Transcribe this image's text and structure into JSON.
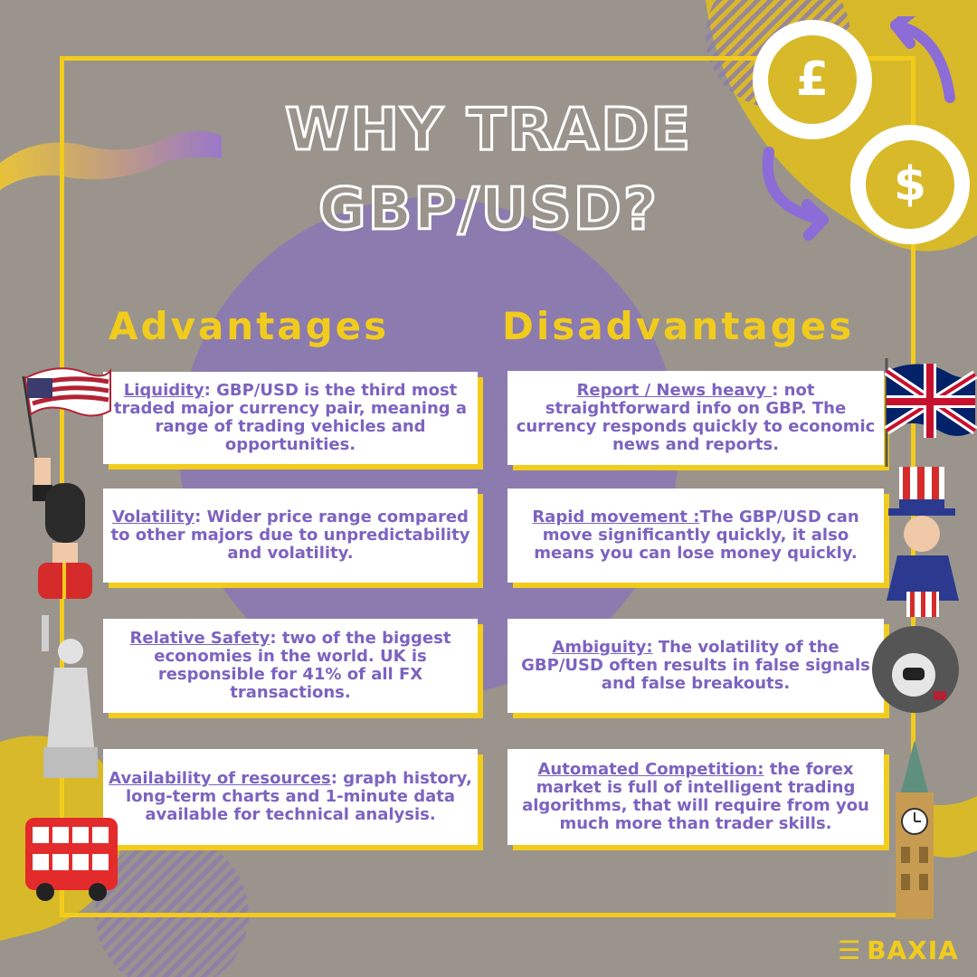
{
  "title": {
    "line1": "WHY TRADE",
    "line2": "GBP/USD?"
  },
  "advantages": {
    "heading": "Advantages",
    "items": [
      {
        "term": "Liquidity",
        "text": ": GBP/USD is the third most traded major currency pair, meaning a range of trading vehicles and opportunities."
      },
      {
        "term": "Volatility",
        "text": ": Wider price range compared to other majors due to unpredictability and volatility."
      },
      {
        "term": "Relative Safety",
        "text": ": two of the biggest economies in the world. UK is responsible for 41% of all FX transactions."
      },
      {
        "term": "Availability of resources",
        "text": ":  graph history, long-term charts and 1-minute data available for technical analysis."
      }
    ]
  },
  "disadvantages": {
    "heading": "Disadvantages",
    "items": [
      {
        "term": "Report / News heavy ",
        "text": ": not straightforward info on GBP. The currency responds quickly to economic news and reports."
      },
      {
        "term": "Rapid movement :",
        "text": "The GBP/USD can move significantly quickly, it also means you can lose money quickly."
      },
      {
        "term": "Ambiguity:",
        "text": " The volatility of the GBP/USD often results in false signals and false breakouts."
      },
      {
        "term": "Automated Competition:",
        "text": " the forex market is full of intelligent trading algorithms, that will require from you much more than trader skills."
      }
    ]
  },
  "coins": {
    "pound": "£",
    "dollar": "$"
  },
  "brand": {
    "name": "BAXIA"
  },
  "colors": {
    "background": "#9a948d",
    "accent_yellow": "#f2cc1c",
    "accent_purple": "#8c7bae",
    "text_purple": "#7c63c0"
  },
  "icons": [
    "us-flag-icon",
    "uk-flag-icon",
    "royal-guard-icon",
    "uncle-sam-icon",
    "statue-of-liberty-icon",
    "astronaut-icon",
    "double-decker-bus-icon",
    "big-ben-icon",
    "pound-coin-icon",
    "dollar-coin-icon",
    "exchange-arrows-icon"
  ]
}
